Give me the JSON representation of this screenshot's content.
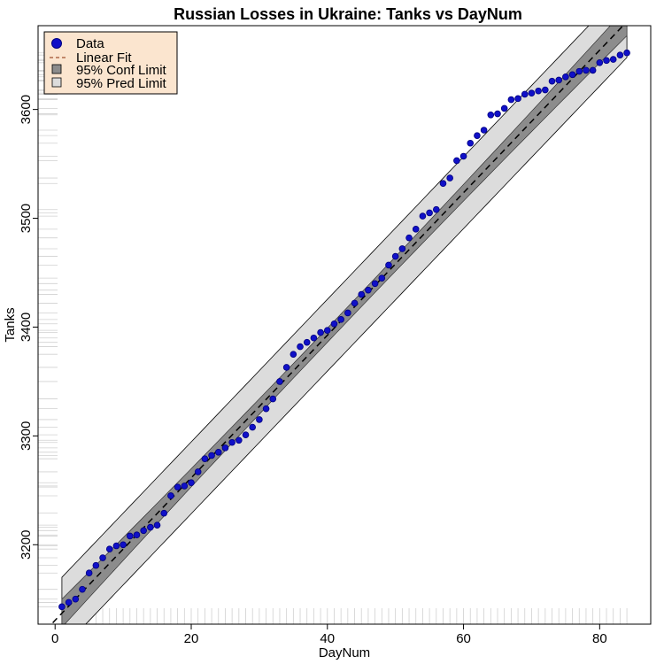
{
  "chart_data": {
    "type": "scatter",
    "title": "Russian Losses in Ukraine: Tanks vs DayNum",
    "xlabel": "DayNum",
    "ylabel": "Tanks",
    "xlim": [
      -2.5,
      87.5
    ],
    "ylim": [
      3127,
      3677
    ],
    "x_ticks": [
      0,
      20,
      40,
      60,
      80
    ],
    "y_ticks": [
      3200,
      3300,
      3400,
      3500,
      3600
    ],
    "grid": false,
    "legend_position": "top-left",
    "legend": {
      "entries": [
        {
          "label": "Data",
          "kind": "point"
        },
        {
          "label": "Linear Fit",
          "kind": "dashed-line"
        },
        {
          "label": "95% Conf Limit",
          "kind": "box-dark"
        },
        {
          "label": "95% Pred Limit",
          "kind": "box-light"
        }
      ]
    },
    "fit": {
      "intercept": 3130.5,
      "slope": 6.55,
      "conf_halfwidth_center": 6.5,
      "conf_halfwidth_edge": 13,
      "pred_halfwidth": 33
    },
    "fit_range": [
      1,
      84
    ],
    "colors": {
      "point_fill": "#1010c8",
      "point_edge": "#000080",
      "fit_line": "#000000",
      "legend_fit_line": "#a0522d",
      "conf_band": "#8c8c8c",
      "pred_band": "#dcdcdc",
      "legend_bg": "#fbe5cf"
    },
    "series": [
      {
        "name": "Data",
        "x": [
          1,
          2,
          3,
          4,
          5,
          6,
          7,
          8,
          9,
          10,
          11,
          12,
          13,
          14,
          15,
          16,
          17,
          18,
          19,
          20,
          21,
          22,
          23,
          24,
          25,
          26,
          27,
          28,
          29,
          30,
          31,
          32,
          33,
          34,
          35,
          36,
          37,
          38,
          39,
          40,
          41,
          42,
          43,
          44,
          45,
          46,
          47,
          48,
          49,
          50,
          51,
          52,
          53,
          54,
          55,
          56,
          57,
          58,
          59,
          60,
          61,
          62,
          63,
          64,
          65,
          66,
          67,
          68,
          69,
          70,
          71,
          72,
          73,
          74,
          75,
          76,
          77,
          78,
          79,
          80,
          81,
          82,
          83,
          84
        ],
        "y": [
          3143,
          3147,
          3150,
          3159,
          3174,
          3181,
          3188,
          3196,
          3199,
          3200,
          3208,
          3209,
          3213,
          3216,
          3218,
          3229,
          3245,
          3253,
          3254,
          3257,
          3267,
          3279,
          3282,
          3285,
          3289,
          3294,
          3296,
          3301,
          3308,
          3315,
          3325,
          3334,
          3350,
          3363,
          3375,
          3382,
          3386,
          3390,
          3395,
          3397,
          3403,
          3407,
          3413,
          3422,
          3430,
          3434,
          3440,
          3445,
          3457,
          3465,
          3472,
          3482,
          3490,
          3502,
          3505,
          3508,
          3532,
          3537,
          3553,
          3557,
          3569,
          3576,
          3581,
          3595,
          3596,
          3601,
          3609,
          3610,
          3614,
          3615,
          3617,
          3618,
          3626,
          3627,
          3630,
          3632,
          3635,
          3636,
          3636,
          3643,
          3645,
          3646,
          3650,
          3652
        ]
      }
    ]
  }
}
